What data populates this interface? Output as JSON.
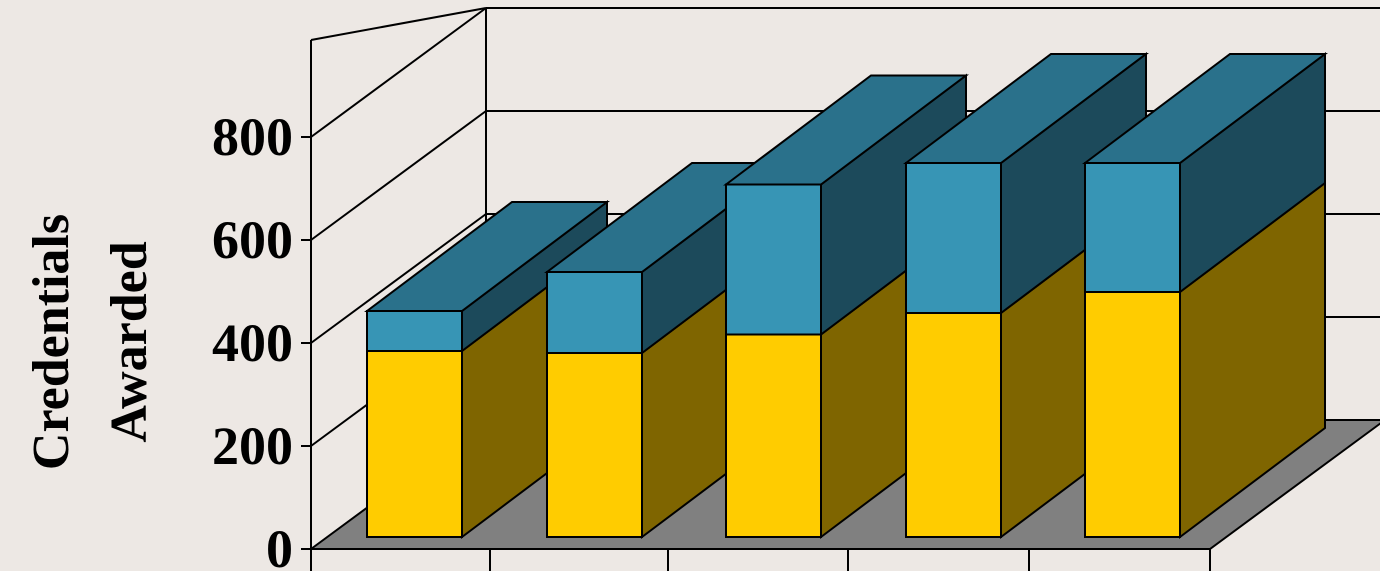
{
  "colors": {
    "background": "#ede8e4",
    "floor": "#808080",
    "series_bottom_front": "#ffcc00",
    "series_bottom_side": "#7f6500",
    "series_top_front": "#3795b5",
    "series_top_side": "#1c4a5b",
    "series_top_roof": "#2a718b",
    "lines": "#000000"
  },
  "chart_data": {
    "type": "bar",
    "stacked": true,
    "three_d": true,
    "ylabel_lines": [
      "Credentials",
      "Awarded"
    ],
    "xlabel": "",
    "categories": [
      "",
      "",
      "",
      "",
      ""
    ],
    "series": [
      {
        "values": [
          372,
          368,
          405,
          448,
          490
        ]
      },
      {
        "values": [
          80,
          162,
          300,
          300,
          258
        ]
      }
    ],
    "ylim": [
      0,
      800
    ],
    "yticks": [
      0,
      200,
      400,
      600,
      800
    ],
    "grid": true,
    "legend": "none"
  }
}
